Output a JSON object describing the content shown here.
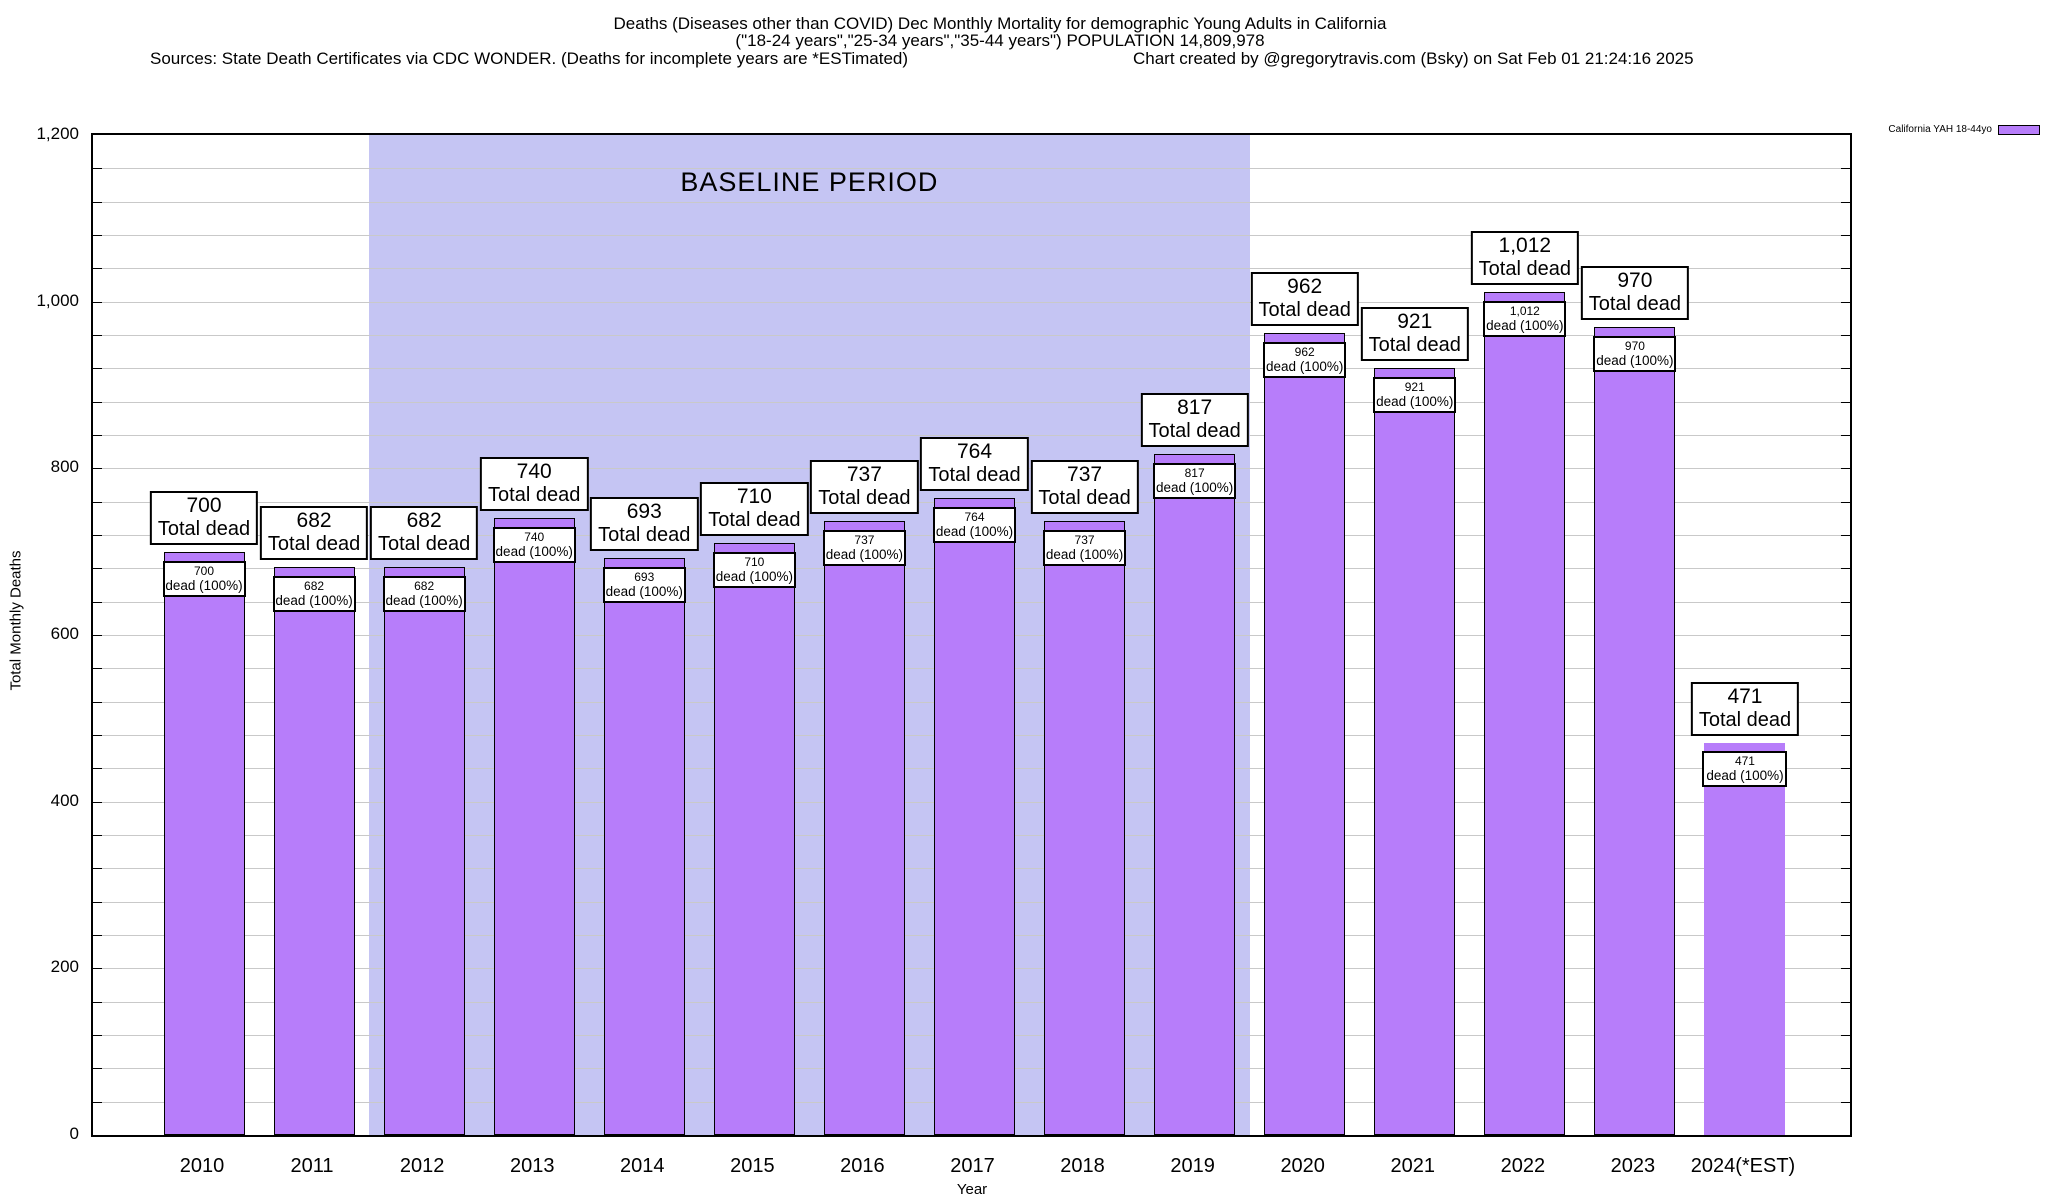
{
  "header": {
    "title_line1": "Deaths (Diseases other than COVID) Dec Monthly Mortality for demographic Young Adults in California",
    "title_line2": "(\"18-24 years\",\"25-34 years\",\"35-44 years\") POPULATION 14,809,978",
    "sources_line": "Sources: State Death Certificates via CDC WONDER. (Deaths for incomplete years are *ESTimated)",
    "credit_line": "Chart created by @gregorytravis.com (Bsky) on Sat Feb 01 21:24:16 2025"
  },
  "legend": {
    "label": "California YAH 18-44yo",
    "swatch_color": "#b77dfa"
  },
  "axes": {
    "x_title": "Year",
    "y_title": "Total Monthly Deaths"
  },
  "annotations": {
    "baseline_label": "BASELINE PERIOD"
  },
  "bar_labels": {
    "outer_suffix": "Total dead",
    "inner_suffix": "dead (100%)"
  },
  "colors": {
    "bar_fill": "#b77dfa",
    "baseline_fill": "#c5c5f3",
    "grid": "#c9c9c9"
  },
  "chart_data": {
    "type": "bar",
    "title": "Deaths (Diseases other than COVID) Dec Monthly Mortality for demographic Young Adults in California",
    "xlabel": "Year",
    "ylabel": "Total Monthly Deaths",
    "categories": [
      "2010",
      "2011",
      "2012",
      "2013",
      "2014",
      "2015",
      "2016",
      "2017",
      "2018",
      "2019",
      "2020",
      "2021",
      "2022",
      "2023",
      "2024(*EST)"
    ],
    "values": [
      700,
      682,
      682,
      740,
      693,
      710,
      737,
      764,
      737,
      817,
      962,
      921,
      1012,
      970,
      471
    ],
    "series_name": "California YAH 18-44yo",
    "ylim": [
      0,
      1200
    ],
    "y_major_step": 200,
    "y_minor_step": 40,
    "grid": true,
    "legend_position": "top-right",
    "baseline_period": {
      "start_category": "2012",
      "end_category": "2019",
      "label": "BASELINE PERIOD"
    }
  }
}
